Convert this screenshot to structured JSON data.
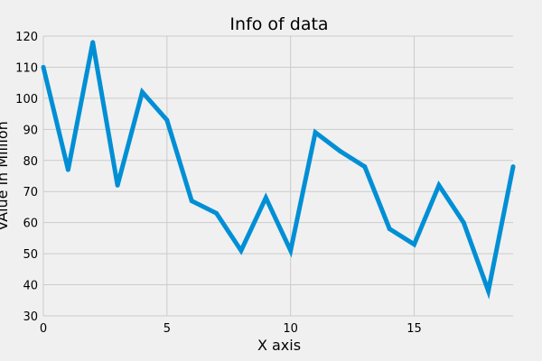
{
  "chart_data": {
    "type": "line",
    "title": "Info of data",
    "xlabel": "X axis",
    "ylabel": "VAlue in Million",
    "xlim": [
      0,
      19
    ],
    "ylim": [
      30,
      120
    ],
    "xticks": [
      0,
      5,
      10,
      15
    ],
    "yticks": [
      30,
      40,
      50,
      60,
      70,
      80,
      90,
      100,
      110,
      120
    ],
    "grid": true,
    "series": [
      {
        "color": "#008fd5",
        "x": [
          0,
          1,
          2,
          3,
          4,
          5,
          6,
          7,
          8,
          9,
          10,
          11,
          12,
          13,
          14,
          15,
          16,
          17,
          18,
          19
        ],
        "y": [
          110,
          77,
          118,
          72,
          102,
          93,
          67,
          63,
          51,
          68,
          51,
          89,
          83,
          78,
          58,
          53,
          72,
          60,
          38,
          78
        ]
      }
    ]
  }
}
